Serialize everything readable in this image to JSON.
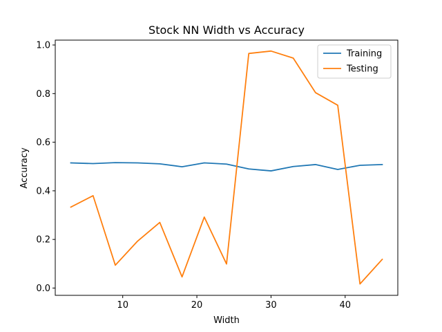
{
  "chart_data": {
    "type": "line",
    "title": "Stock NN Width vs Accuracy",
    "xlabel": "Width",
    "ylabel": "Accuracy",
    "xlim": [
      0.9,
      47.1
    ],
    "ylim": [
      -0.03,
      1.02
    ],
    "xticks": [
      10,
      20,
      30,
      40
    ],
    "yticks": [
      0.0,
      0.2,
      0.4,
      0.6,
      0.8,
      1.0
    ],
    "xtick_labels": [
      "10",
      "20",
      "30",
      "40"
    ],
    "ytick_labels": [
      "0.0",
      "0.2",
      "0.4",
      "0.6",
      "0.8",
      "1.0"
    ],
    "x": [
      3,
      6,
      9,
      12,
      15,
      18,
      21,
      24,
      27,
      30,
      33,
      36,
      39,
      42,
      45
    ],
    "series": [
      {
        "name": "Training",
        "color": "#1f77b4",
        "values": [
          0.515,
          0.512,
          0.516,
          0.515,
          0.511,
          0.499,
          0.515,
          0.51,
          0.49,
          0.482,
          0.5,
          0.508,
          0.488,
          0.505,
          0.508
        ]
      },
      {
        "name": "Testing",
        "color": "#ff7f0e",
        "values": [
          0.333,
          0.38,
          0.094,
          0.193,
          0.27,
          0.046,
          0.292,
          0.099,
          0.965,
          0.975,
          0.946,
          0.804,
          0.752,
          0.017,
          0.118
        ]
      }
    ],
    "legend_position": "top-right",
    "grid": false
  }
}
